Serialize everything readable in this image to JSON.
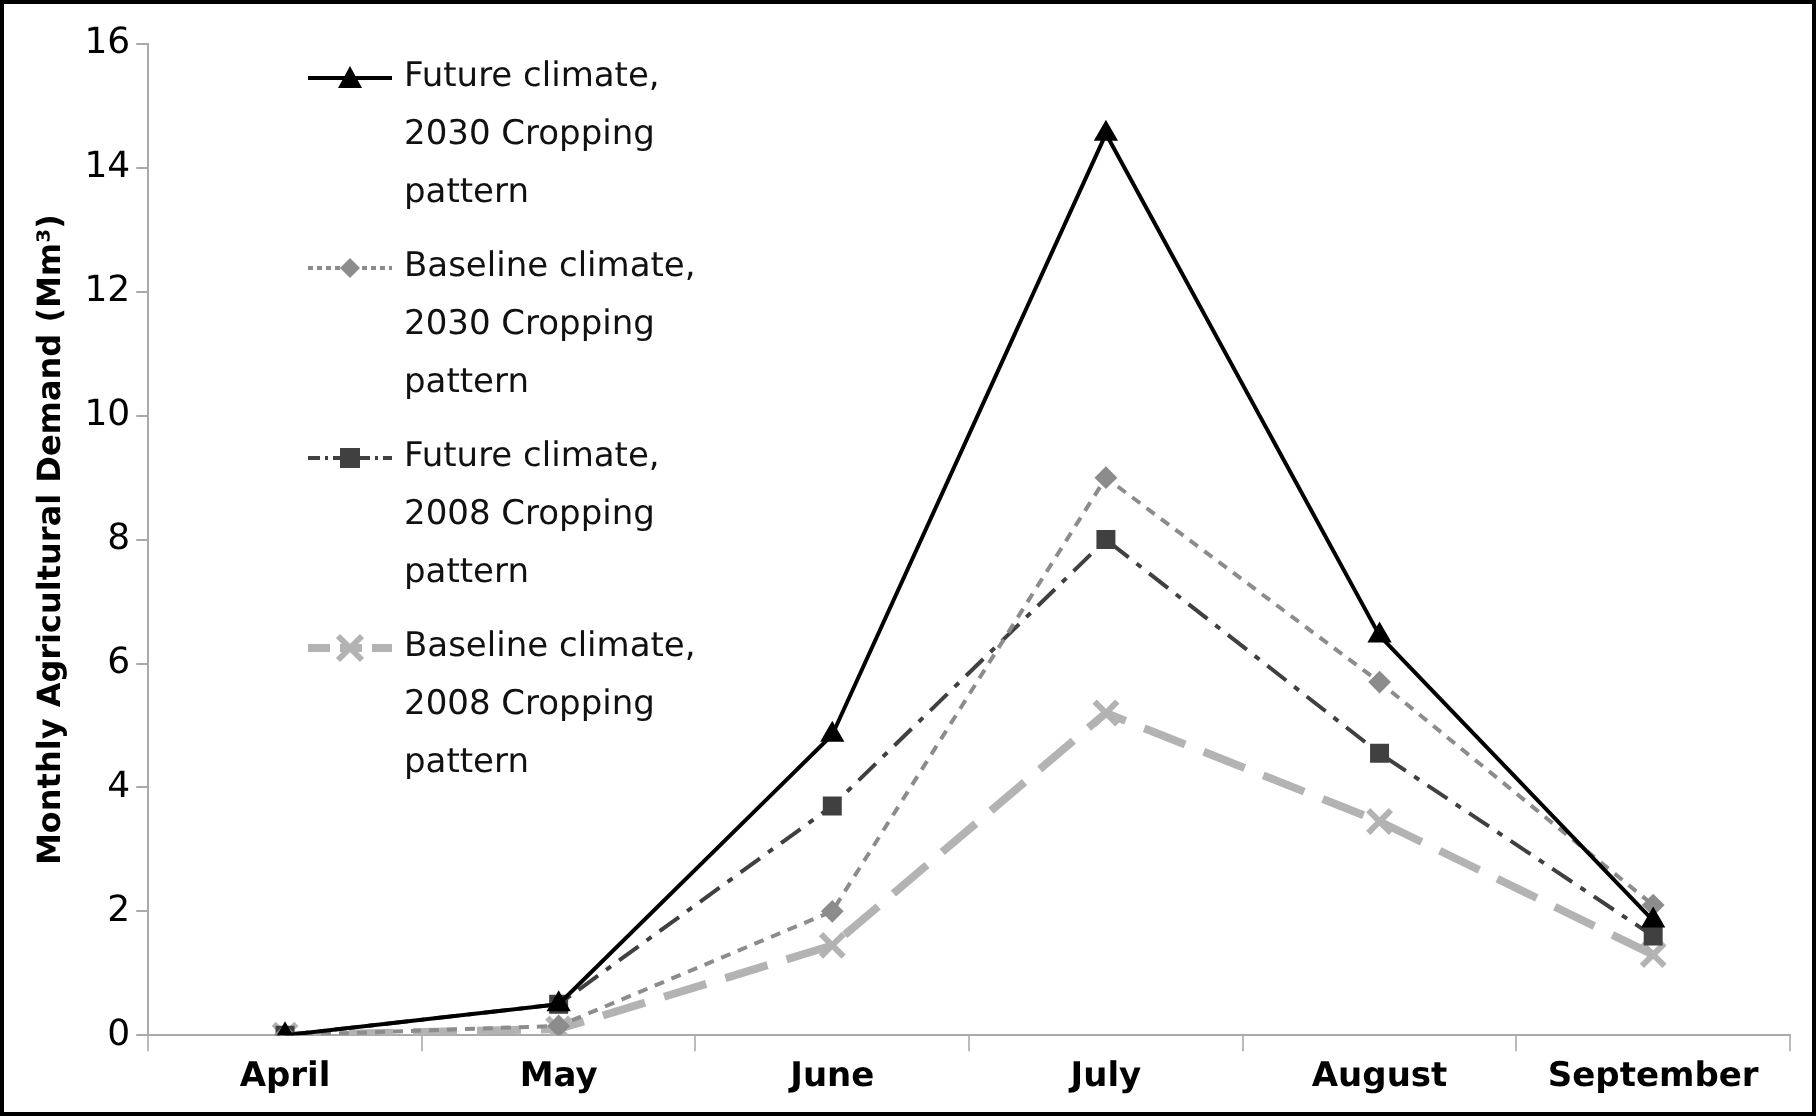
{
  "chart_data": {
    "type": "line",
    "ylabel": "Monthly Agricultural Demand (Mm³)",
    "categories": [
      "April",
      "May",
      "June",
      "July",
      "August",
      "September"
    ],
    "ylim": [
      0,
      16
    ],
    "yticks": [
      0,
      2,
      4,
      6,
      8,
      10,
      12,
      14,
      16
    ],
    "grid": false,
    "legend": "top left",
    "series": [
      {
        "name": "Future climate, 2030 Cropping pattern",
        "color": "#000000",
        "marker": "triangle",
        "line_style": "solid",
        "values": [
          0,
          0.5,
          4.85,
          14.55,
          6.45,
          1.85
        ]
      },
      {
        "name": "Baseline climate, 2030 Cropping pattern",
        "color": "#8c8c8c",
        "marker": "diamond",
        "line_style": "dotted",
        "values": [
          0,
          0.15,
          2.0,
          9.0,
          5.7,
          2.1
        ]
      },
      {
        "name": "Future climate, 2008 Cropping pattern",
        "color": "#404040",
        "marker": "square",
        "line_style": "dashdot",
        "values": [
          0,
          0.5,
          3.7,
          8.0,
          4.55,
          1.6
        ]
      },
      {
        "name": "Baseline climate, 2008 Cropping pattern",
        "color": "#b3b3b3",
        "marker": "cross",
        "line_style": "dashed",
        "values": [
          0,
          0.1,
          1.45,
          5.2,
          3.45,
          1.3
        ]
      }
    ]
  }
}
